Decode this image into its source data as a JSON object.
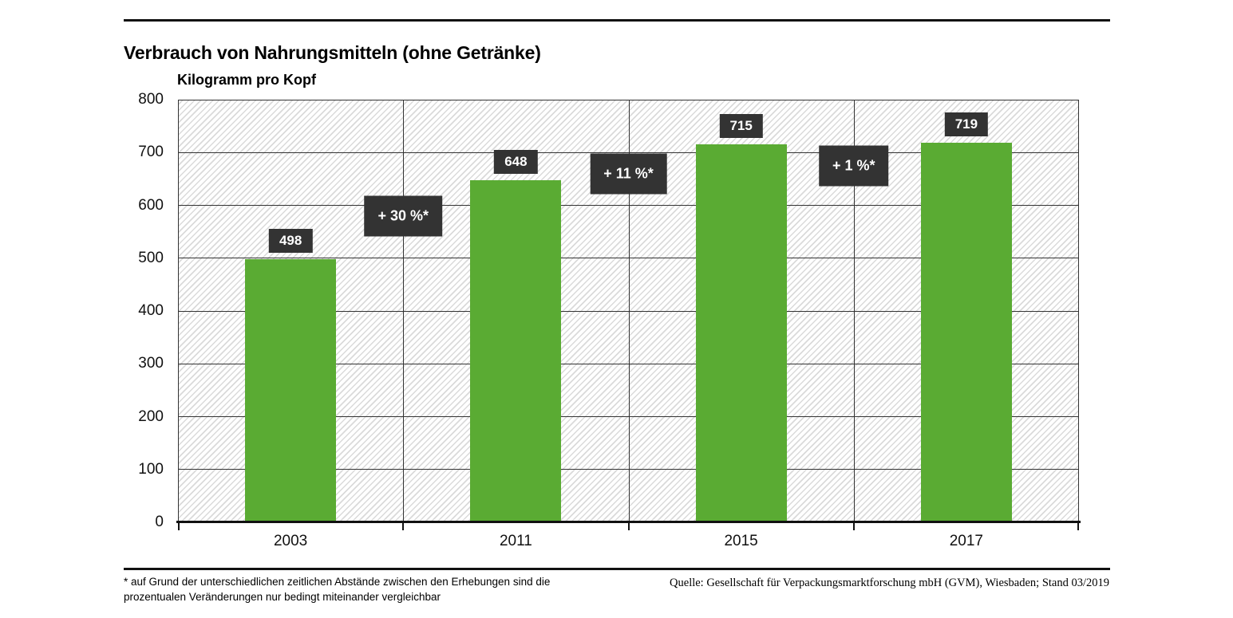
{
  "page": {
    "title": "Verbrauch von Nahrungsmitteln (ohne Getränke)",
    "footnote_line1": "* auf Grund der unterschiedlichen zeitlichen Abstände zwischen den Erhebungen sind die",
    "footnote_line2": "prozentualen Veränderungen nur bedingt miteinander vergleichbar",
    "source": "Quelle: Gesellschaft für Verpackungsmarktforschung mbH (GVM), Wiesbaden; Stand 03/2019"
  },
  "chart_data": {
    "type": "bar",
    "title": "Verbrauch von Nahrungsmitteln (ohne Getränke)",
    "ylabel": "Kilogramm pro Kopf",
    "xlabel": "",
    "categories": [
      "2003",
      "2011",
      "2015",
      "2017"
    ],
    "values": [
      498,
      648,
      715,
      719
    ],
    "ylim": [
      0,
      800
    ],
    "ytick_step": 100,
    "grid": true,
    "legend": "none",
    "value_labels": [
      "498",
      "648",
      "715",
      "719"
    ],
    "change_labels": [
      {
        "text": "+ 30 %*",
        "gap_index": 1,
        "between": [
          "2003",
          "2011"
        ],
        "level": 580
      },
      {
        "text": "+ 11 %*",
        "gap_index": 2,
        "between": [
          "2011",
          "2015"
        ],
        "level": 660
      },
      {
        "text": "+ 1 %*",
        "gap_index": 3,
        "between": [
          "2015",
          "2017"
        ],
        "level": 675
      }
    ],
    "colors": {
      "bar": "#5aab33",
      "label_box": "#333333",
      "grid": "#333333",
      "hatch": "#dadada"
    }
  }
}
